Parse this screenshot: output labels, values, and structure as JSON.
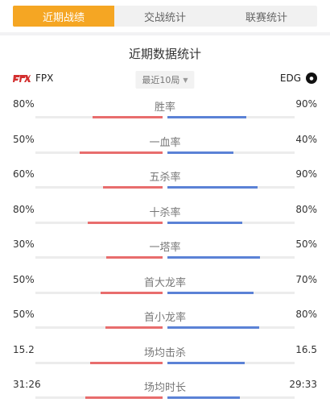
{
  "tabs": [
    "近期战绩",
    "交战统计",
    "联赛统计"
  ],
  "active_tab": 0,
  "section_title": "近期数据统计",
  "team_left": {
    "name": "FPX",
    "logo": "fpx-logo"
  },
  "team_right": {
    "name": "EDG",
    "logo": "edg-logo"
  },
  "filter": {
    "label": "最近10局",
    "icon": "caret-down-icon"
  },
  "colors": {
    "accent": "#f5a623",
    "left_bar": "#e86d6d",
    "right_bar": "#5b82d6"
  },
  "rows": [
    {
      "label": "胜率",
      "left": "80%",
      "right": "90%",
      "left_frac": 0.55,
      "right_frac": 0.62
    },
    {
      "label": "一血率",
      "left": "50%",
      "right": "40%",
      "left_frac": 0.65,
      "right_frac": 0.52
    },
    {
      "label": "五杀率",
      "left": "60%",
      "right": "90%",
      "left_frac": 0.47,
      "right_frac": 0.71
    },
    {
      "label": "十杀率",
      "left": "80%",
      "right": "80%",
      "left_frac": 0.59,
      "right_frac": 0.59
    },
    {
      "label": "一塔率",
      "left": "30%",
      "right": "50%",
      "left_frac": 0.44,
      "right_frac": 0.73
    },
    {
      "label": "首大龙率",
      "left": "50%",
      "right": "70%",
      "left_frac": 0.49,
      "right_frac": 0.68
    },
    {
      "label": "首小龙率",
      "left": "50%",
      "right": "80%",
      "left_frac": 0.45,
      "right_frac": 0.72
    },
    {
      "label": "场均击杀",
      "left": "15.2",
      "right": "16.5",
      "left_frac": 0.57,
      "right_frac": 0.61
    },
    {
      "label": "场均时长",
      "left": "31:26",
      "right": "29:33",
      "left_frac": 0.61,
      "right_frac": 0.57
    }
  ]
}
